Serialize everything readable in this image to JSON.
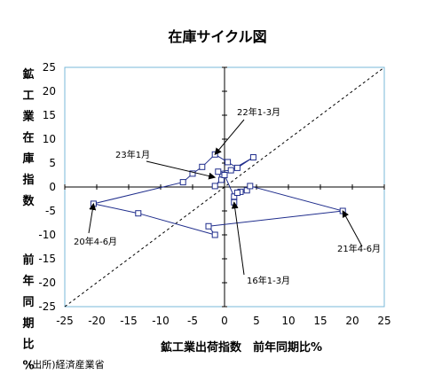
{
  "chart_data": {
    "type": "scatter",
    "title": "在庫サイクル図",
    "xlabel": "鉱工業出荷指数　前年同期比%",
    "ylabel": "鉱工業在庫指数　前年同期比%",
    "xlim": [
      -25,
      25
    ],
    "ylim": [
      -25,
      25
    ],
    "x_ticks": [
      "-25",
      "-20",
      "-15",
      "-10",
      "-5",
      "0",
      "5",
      "10",
      "15",
      "20",
      "25"
    ],
    "y_ticks": [
      "25",
      "20",
      "15",
      "10",
      "5",
      "0",
      "-5",
      "-10",
      "-15",
      "-20",
      "-25"
    ],
    "grid": false,
    "reference_line": "45-degree dashed diagonal",
    "series": [
      {
        "color": "#1f2d8c",
        "points": [
          {
            "x": 2.5,
            "y": -1.0
          },
          {
            "x": 3.5,
            "y": -0.7
          },
          {
            "x": 4.0,
            "y": 0.2
          },
          {
            "x": 18.5,
            "y": -5.0
          },
          {
            "x": -2.5,
            "y": -8.2
          },
          {
            "x": -1.5,
            "y": -10.0
          },
          {
            "x": -13.5,
            "y": -5.5
          },
          {
            "x": -20.5,
            "y": -3.5
          },
          {
            "x": -6.5,
            "y": 1.0
          },
          {
            "x": -5.0,
            "y": 2.8
          },
          {
            "x": -3.5,
            "y": 4.2
          },
          {
            "x": -1.5,
            "y": 6.8
          },
          {
            "x": 0.5,
            "y": 5.2
          },
          {
            "x": 2.0,
            "y": 4.0
          },
          {
            "x": 4.5,
            "y": 6.2
          },
          {
            "x": 1.0,
            "y": 3.5
          },
          {
            "x": -1.0,
            "y": 3.2
          },
          {
            "x": -0.5,
            "y": 1.5
          },
          {
            "x": -1.5,
            "y": 0.2
          },
          {
            "x": 0.0,
            "y": 2.5
          },
          {
            "x": 1.5,
            "y": -2.0
          },
          {
            "x": 2.0,
            "y": -1.2
          },
          {
            "x": 1.5,
            "y": -3.2
          }
        ]
      }
    ],
    "annotations": [
      {
        "text": "22年1-3月",
        "target": {
          "x": -1.5,
          "y": 6.8
        }
      },
      {
        "text": "23年1月",
        "target": {
          "x": -1.5,
          "y": 2.0
        }
      },
      {
        "text": "20年4-6月",
        "target": {
          "x": -20.5,
          "y": -3.5
        }
      },
      {
        "text": "21年4-6月",
        "target": {
          "x": 18.5,
          "y": -5.0
        }
      },
      {
        "text": "16年1-3月",
        "target": {
          "x": 1.5,
          "y": -3.2
        }
      }
    ]
  },
  "source": "(出所)経済産業省"
}
